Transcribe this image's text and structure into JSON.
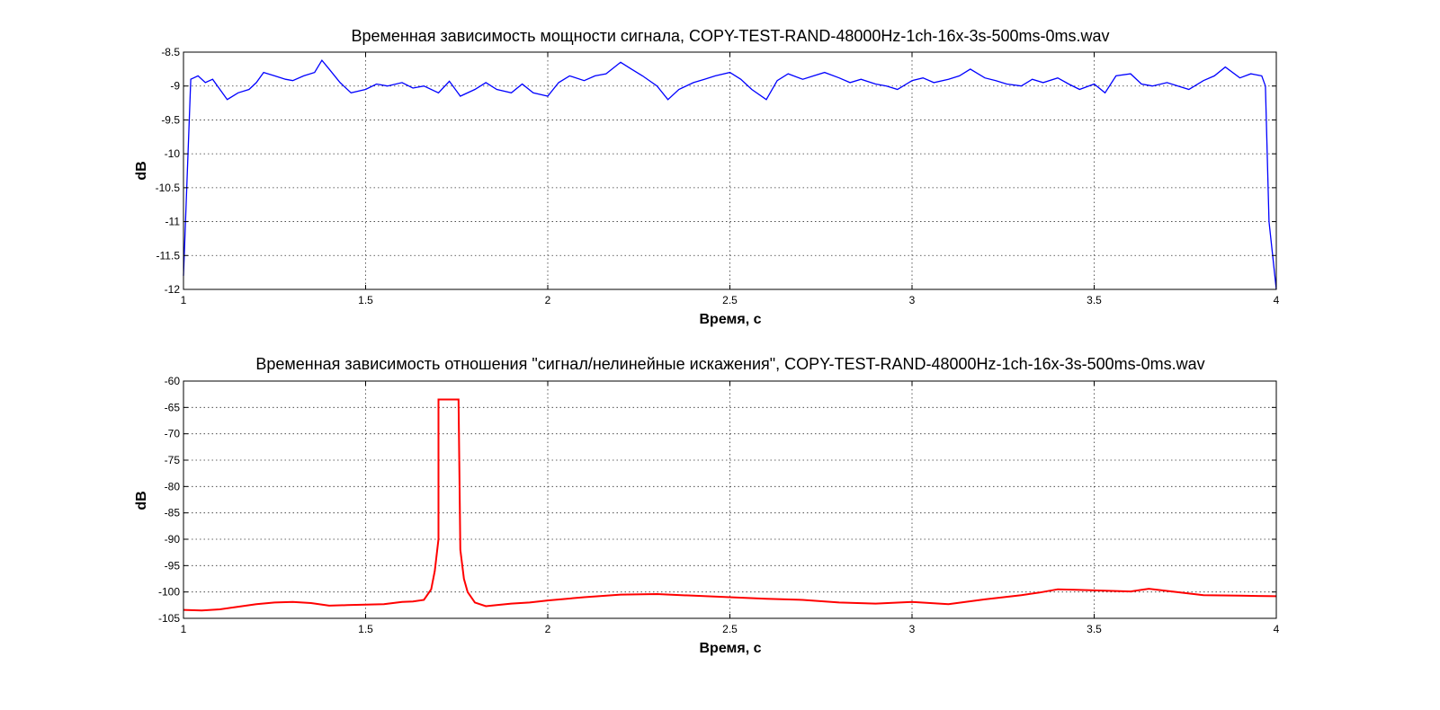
{
  "chart_data": [
    {
      "type": "line",
      "title": "Временная зависимость мощности сигнала, COPY-TEST-RAND-48000Hz-1ch-16x-3s-500ms-0ms.wav",
      "xlabel": "Время, с",
      "ylabel": "dB",
      "xlim": [
        1,
        4
      ],
      "ylim": [
        -12,
        -8.5
      ],
      "xticks": [
        1,
        1.5,
        2,
        2.5,
        3,
        3.5,
        4
      ],
      "xtick_labels": [
        "1",
        "1.5",
        "2",
        "2.5",
        "3",
        "3.5",
        "4"
      ],
      "yticks": [
        -12,
        -11.5,
        -11,
        -10.5,
        -10,
        -9.5,
        -9,
        -8.5
      ],
      "ytick_labels": [
        "-12",
        "-11.5",
        "-11",
        "-10.5",
        "-10",
        "-9.5",
        "-9",
        "-8.5"
      ],
      "grid": true,
      "color": "#0000ff",
      "series": [
        {
          "x": [
            1.0,
            1.02,
            1.04,
            1.06,
            1.08,
            1.1,
            1.12,
            1.15,
            1.18,
            1.2,
            1.22,
            1.25,
            1.28,
            1.3,
            1.33,
            1.36,
            1.38,
            1.4,
            1.43,
            1.46,
            1.5,
            1.53,
            1.56,
            1.6,
            1.63,
            1.66,
            1.7,
            1.73,
            1.76,
            1.8,
            1.83,
            1.86,
            1.9,
            1.93,
            1.96,
            2.0,
            2.03,
            2.06,
            2.1,
            2.13,
            2.16,
            2.2,
            2.23,
            2.26,
            2.3,
            2.33,
            2.36,
            2.4,
            2.43,
            2.46,
            2.5,
            2.53,
            2.56,
            2.6,
            2.63,
            2.66,
            2.7,
            2.73,
            2.76,
            2.8,
            2.83,
            2.86,
            2.9,
            2.93,
            2.96,
            3.0,
            3.03,
            3.06,
            3.1,
            3.13,
            3.16,
            3.2,
            3.23,
            3.26,
            3.3,
            3.33,
            3.36,
            3.4,
            3.43,
            3.46,
            3.5,
            3.53,
            3.56,
            3.6,
            3.63,
            3.66,
            3.7,
            3.73,
            3.76,
            3.8,
            3.83,
            3.86,
            3.9,
            3.93,
            3.96,
            3.97,
            3.98,
            4.0
          ],
          "y": [
            -11.8,
            -8.9,
            -8.85,
            -8.95,
            -8.9,
            -9.05,
            -9.2,
            -9.1,
            -9.05,
            -8.95,
            -8.8,
            -8.85,
            -8.9,
            -8.92,
            -8.85,
            -8.8,
            -8.62,
            -8.75,
            -8.95,
            -9.1,
            -9.05,
            -8.97,
            -9.0,
            -8.95,
            -9.03,
            -9.0,
            -9.1,
            -8.93,
            -9.15,
            -9.05,
            -8.95,
            -9.05,
            -9.1,
            -8.97,
            -9.1,
            -9.15,
            -8.95,
            -8.85,
            -8.92,
            -8.85,
            -8.82,
            -8.65,
            -8.75,
            -8.85,
            -9.0,
            -9.2,
            -9.05,
            -8.95,
            -8.9,
            -8.85,
            -8.8,
            -8.9,
            -9.05,
            -9.2,
            -8.92,
            -8.82,
            -8.9,
            -8.85,
            -8.8,
            -8.88,
            -8.95,
            -8.9,
            -8.97,
            -9.0,
            -9.05,
            -8.92,
            -8.88,
            -8.95,
            -8.9,
            -8.85,
            -8.75,
            -8.88,
            -8.92,
            -8.97,
            -9.0,
            -8.9,
            -8.95,
            -8.88,
            -8.97,
            -9.05,
            -8.97,
            -9.1,
            -8.85,
            -8.82,
            -8.97,
            -9.0,
            -8.95,
            -9.0,
            -9.05,
            -8.92,
            -8.85,
            -8.72,
            -8.88,
            -8.82,
            -8.85,
            -9.0,
            -11.0,
            -12.0
          ]
        }
      ]
    },
    {
      "type": "line",
      "title": "Временная зависимость отношения \"сигнал/нелинейные искажения\", COPY-TEST-RAND-48000Hz-1ch-16x-3s-500ms-0ms.wav",
      "xlabel": "Время, с",
      "ylabel": "dB",
      "xlim": [
        1,
        4
      ],
      "ylim": [
        -105,
        -60
      ],
      "xticks": [
        1,
        1.5,
        2,
        2.5,
        3,
        3.5,
        4
      ],
      "xtick_labels": [
        "1",
        "1.5",
        "2",
        "2.5",
        "3",
        "3.5",
        "4"
      ],
      "yticks": [
        -105,
        -100,
        -95,
        -90,
        -85,
        -80,
        -75,
        -70,
        -65,
        -60
      ],
      "ytick_labels": [
        "-105",
        "-100",
        "-95",
        "-90",
        "-85",
        "-80",
        "-75",
        "-70",
        "-65",
        "-60"
      ],
      "grid": true,
      "color": "#ff0000",
      "series": [
        {
          "x": [
            1.0,
            1.05,
            1.1,
            1.15,
            1.2,
            1.25,
            1.3,
            1.35,
            1.4,
            1.45,
            1.5,
            1.55,
            1.6,
            1.63,
            1.66,
            1.68,
            1.69,
            1.7,
            1.7,
            1.705,
            1.75,
            1.755,
            1.76,
            1.77,
            1.78,
            1.8,
            1.83,
            1.86,
            1.9,
            1.95,
            2.0,
            2.1,
            2.2,
            2.3,
            2.4,
            2.5,
            2.6,
            2.7,
            2.8,
            2.9,
            3.0,
            3.1,
            3.2,
            3.3,
            3.35,
            3.4,
            3.45,
            3.5,
            3.55,
            3.6,
            3.65,
            3.7,
            3.8,
            3.9,
            4.0
          ],
          "y": [
            -103.4,
            -103.5,
            -103.3,
            -102.8,
            -102.3,
            -102.0,
            -101.9,
            -102.1,
            -102.6,
            -102.5,
            -102.4,
            -102.3,
            -101.9,
            -101.8,
            -101.5,
            -99.5,
            -96.0,
            -90.0,
            -63.5,
            -63.5,
            -63.5,
            -63.5,
            -92.0,
            -97.5,
            -100.0,
            -102.0,
            -102.7,
            -102.5,
            -102.2,
            -102.0,
            -101.6,
            -101.0,
            -100.5,
            -100.4,
            -100.7,
            -101.0,
            -101.3,
            -101.5,
            -102.0,
            -102.2,
            -101.9,
            -102.3,
            -101.4,
            -100.6,
            -100.1,
            -99.5,
            -99.6,
            -99.7,
            -99.8,
            -99.9,
            -99.4,
            -99.8,
            -100.6,
            -100.7,
            -100.8
          ]
        }
      ]
    }
  ]
}
